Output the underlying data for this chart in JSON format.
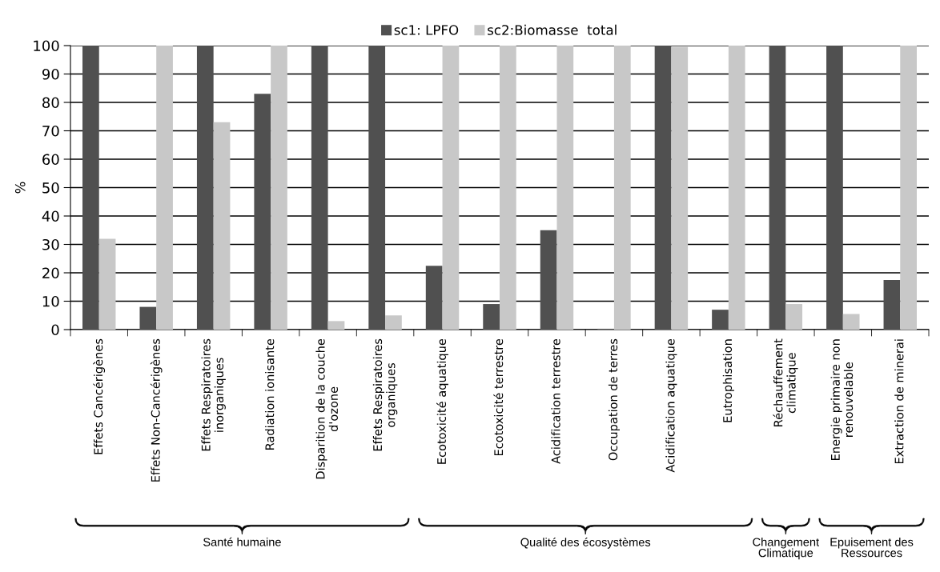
{
  "chart_data": {
    "type": "bar",
    "ylabel": "%",
    "categories": [
      "Effets Cancérigènes",
      "Effets Non-Cancérigènes",
      "Effets Respiratoires inorganiques",
      "Radiation ionisante",
      "Disparition de la couche d'ozone",
      "Effets Respiratoires organiques",
      "Ecotoxicité aquatique",
      "Ecotoxicité terrestre",
      "Acidification terrestre",
      "Occupation de terres",
      "Acidification aquatique",
      "Eutrophisation",
      "Réchauffement climatique",
      "Energie primaire non renouvelable",
      "Extraction de minerai"
    ],
    "series": [
      {
        "name": "sc1: LPFO",
        "color": "#505050",
        "values": [
          100,
          8,
          100,
          83,
          100,
          100,
          22.5,
          9,
          35,
          0.3,
          100,
          7,
          100,
          100,
          17.5
        ]
      },
      {
        "name": "sc2:Biomasse  total",
        "color": "#c8c8c8",
        "values": [
          32,
          100,
          73,
          100,
          3,
          5,
          100,
          100,
          100,
          100,
          99.5,
          100,
          9,
          5.5,
          100
        ]
      }
    ],
    "ylim": [
      0,
      100
    ],
    "yticks": [
      0,
      10,
      20,
      30,
      40,
      50,
      60,
      70,
      80,
      90,
      100
    ],
    "grid": "y",
    "legend": "top",
    "annotations": [
      "Santé humaine",
      "Qualité des écosystèmes",
      "Changement Climatique",
      "Epuisement des Ressources"
    ]
  }
}
